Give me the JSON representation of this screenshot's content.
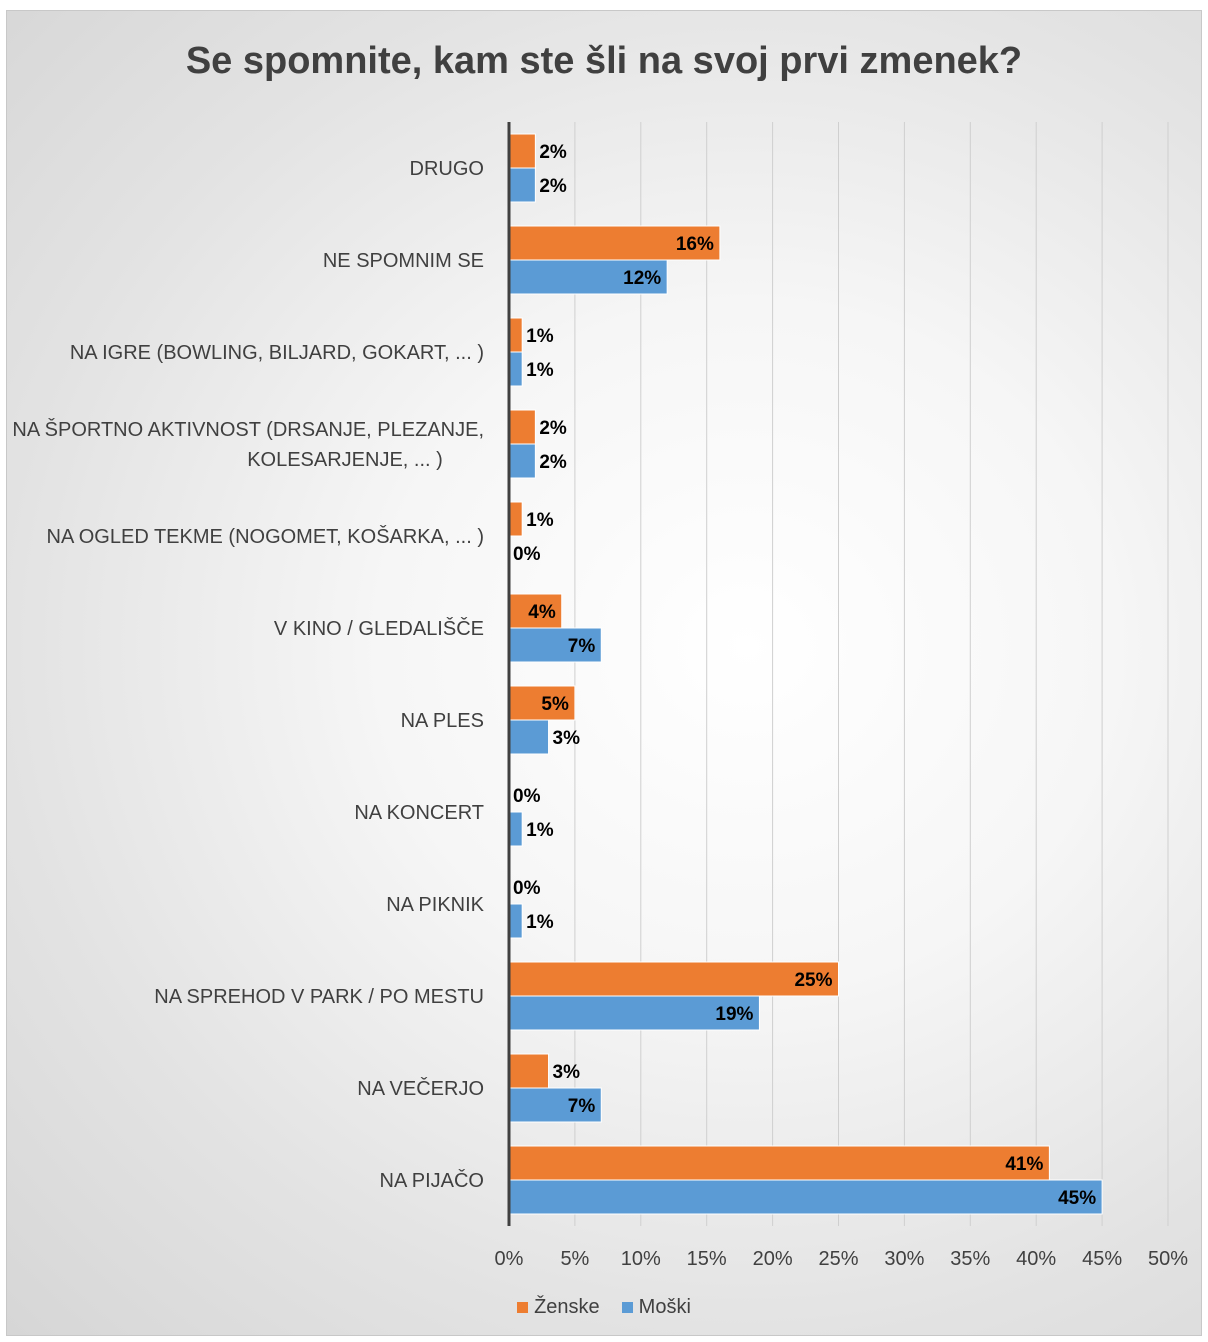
{
  "chart_data": {
    "type": "bar",
    "orientation": "horizontal",
    "title": "Se spomnite, kam ste šli na svoj prvi zmenek?",
    "categories": [
      "DRUGO",
      "NE SPOMNIM SE",
      "NA IGRE (BOWLING, BILJARD, GOKART, ... )",
      "NA ŠPORTNO AKTIVNOST (DRSANJE, PLEZANJE, KOLESARJENJE, ... )",
      "NA OGLED TEKME (NOGOMET, KOŠARKA, ... )",
      "V KINO / GLEDALIŠČE",
      "NA PLES",
      "NA KONCERT",
      "NA PIKNIK",
      "NA SPREHOD V PARK / PO MESTU",
      "NA VEČERJO",
      "NA PIJAČO"
    ],
    "category_lines": [
      [
        "DRUGO"
      ],
      [
        "NE SPOMNIM SE"
      ],
      [
        "NA IGRE (BOWLING, BILJARD, GOKART, ... )"
      ],
      [
        "NA ŠPORTNO AKTIVNOST (DRSANJE, PLEZANJE,",
        "KOLESARJENJE, ... )"
      ],
      [
        "NA OGLED TEKME (NOGOMET, KOŠARKA, ... )"
      ],
      [
        "V KINO / GLEDALIŠČE"
      ],
      [
        "NA PLES"
      ],
      [
        "NA KONCERT"
      ],
      [
        "NA PIKNIK"
      ],
      [
        "NA SPREHOD V PARK / PO MESTU"
      ],
      [
        "NA VEČERJO"
      ],
      [
        "NA PIJAČO"
      ]
    ],
    "series": [
      {
        "name": "Ženske",
        "color": "#ed7d31",
        "values": [
          2,
          16,
          1,
          2,
          1,
          4,
          5,
          0,
          0,
          25,
          3,
          41
        ],
        "labels": [
          "2%",
          "16%",
          "1%",
          "2%",
          "1%",
          "4%",
          "5%",
          "0%",
          "0%",
          "25%",
          "3%",
          "41%"
        ]
      },
      {
        "name": "Moški",
        "color": "#5b9bd5",
        "values": [
          2,
          12,
          1,
          2,
          0,
          7,
          3,
          1,
          1,
          19,
          7,
          45
        ],
        "labels": [
          "2%",
          "12%",
          "1%",
          "2%",
          "0%",
          "7%",
          "3%",
          "1%",
          "1%",
          "19%",
          "7%",
          "45%"
        ]
      }
    ],
    "xlim": [
      0,
      50
    ],
    "xticks": [
      "0%",
      "5%",
      "10%",
      "15%",
      "20%",
      "25%",
      "30%",
      "35%",
      "40%",
      "45%",
      "50%"
    ],
    "grid": true,
    "legend_position": "bottom"
  }
}
